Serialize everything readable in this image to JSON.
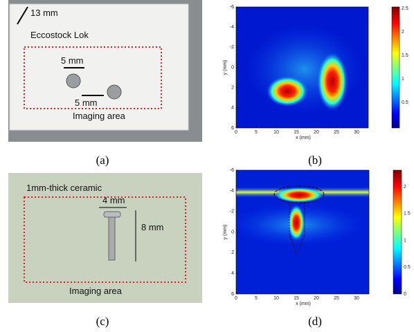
{
  "panels": [
    {
      "caption": "(a)",
      "labels": [
        "13 mm",
        "Eccostock Lok",
        "5 mm",
        "5 mm",
        "Imaging area"
      ]
    },
    {
      "caption": "(b)",
      "x_label": "x (mm)",
      "y_label": "y (mm)",
      "xticks": [
        0,
        5,
        10,
        15,
        20,
        25,
        30
      ],
      "yticks": [
        -6,
        -4,
        -2,
        0,
        2,
        4,
        6
      ],
      "colorbar_ticks": [
        2.5,
        2,
        1.5,
        1,
        0.5
      ]
    },
    {
      "caption": "(c)",
      "labels": [
        "1mm-thick ceramic",
        "4 mm",
        "8 mm",
        "Imaging area"
      ]
    },
    {
      "caption": "(d)",
      "x_label": "x (mm)",
      "y_label": "y (mm)",
      "xticks": [
        0,
        5,
        10,
        15,
        20,
        25,
        30
      ],
      "yticks": [
        -6,
        -4,
        -2,
        0,
        2,
        4,
        6
      ],
      "colorbar_ticks": [
        2,
        1.5,
        1,
        0.5,
        0
      ]
    }
  ]
}
